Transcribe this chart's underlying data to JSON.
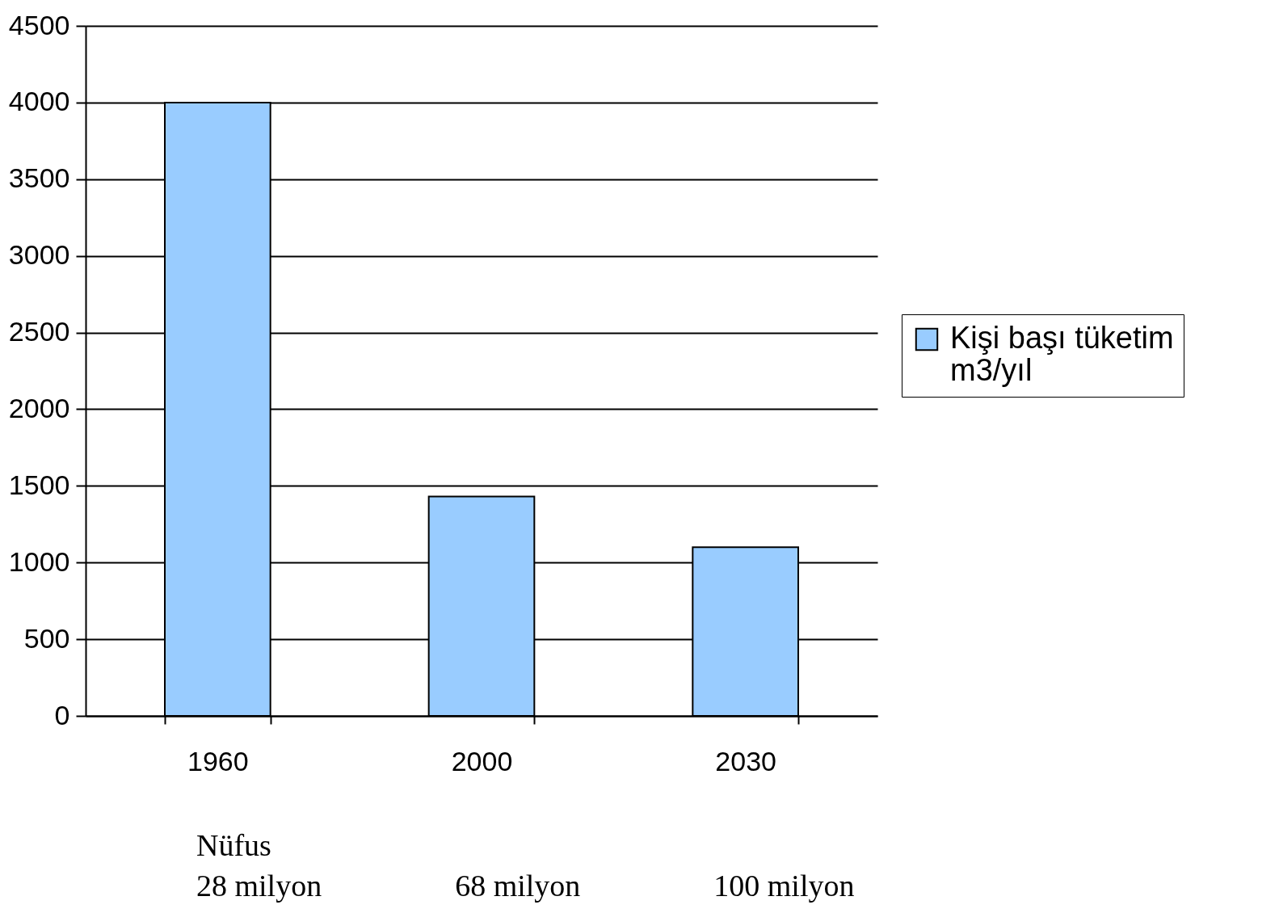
{
  "chart_data": {
    "type": "bar",
    "categories": [
      "1960",
      "2000",
      "2030"
    ],
    "series": [
      {
        "name": "Kişi başı tüketim m3/yıl",
        "color": "#99ccff",
        "values": [
          4000,
          1430,
          1100
        ]
      }
    ],
    "ylim": [
      0,
      4500
    ],
    "yticks": [
      0,
      500,
      1000,
      1500,
      2000,
      2500,
      3000,
      3500,
      4000,
      4500
    ],
    "grid": "y",
    "legend": "right",
    "annotations": [
      "Nüfus",
      "28 milyon",
      "68 milyon",
      "100 milyon"
    ]
  }
}
